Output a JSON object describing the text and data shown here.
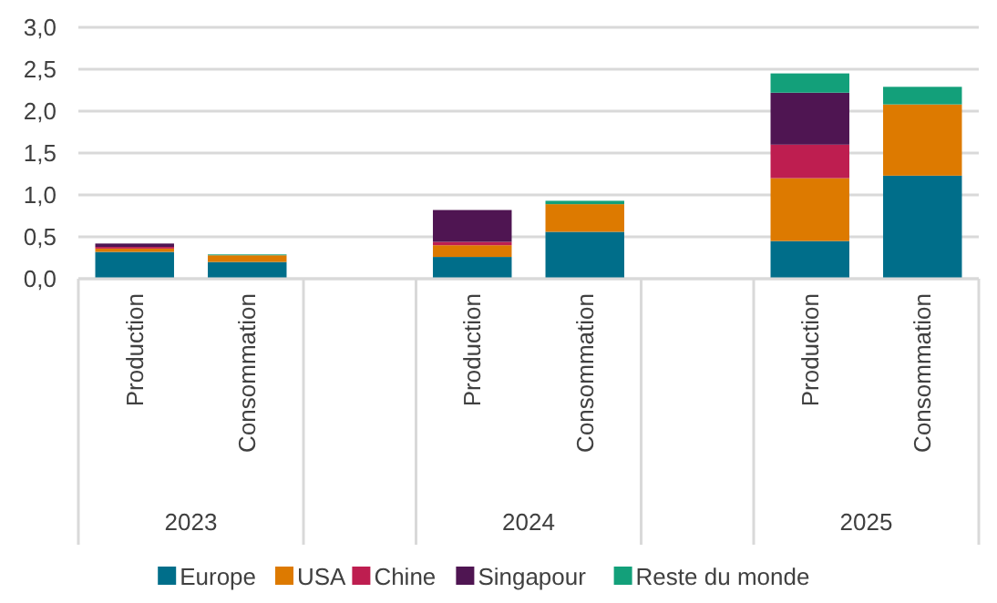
{
  "chart_data": {
    "type": "bar",
    "stacked": true,
    "categories": [
      "Production",
      "Consommation",
      null,
      "Production",
      "Consommation",
      null,
      "Production",
      "Consommation"
    ],
    "annotations": [
      "2023",
      "2024",
      "2025"
    ],
    "series": [
      {
        "name": "Europe",
        "color": "#006e8a",
        "values": [
          0.32,
          0.2,
          null,
          0.26,
          0.56,
          null,
          0.45,
          1.23
        ]
      },
      {
        "name": "USA",
        "color": "#dd7a00",
        "values": [
          0.04,
          0.08,
          null,
          0.14,
          0.33,
          null,
          0.75,
          0.85
        ]
      },
      {
        "name": "Chine",
        "color": "#be1e50",
        "values": [
          0.02,
          null,
          null,
          0.04,
          null,
          null,
          0.4,
          null
        ]
      },
      {
        "name": "Singapour",
        "color": "#4f1552",
        "values": [
          0.04,
          null,
          null,
          0.38,
          null,
          null,
          0.62,
          null
        ]
      },
      {
        "name": "Reste du monde",
        "color": "#13a07a",
        "values": [
          null,
          0.01,
          null,
          null,
          0.04,
          null,
          0.23,
          0.21
        ]
      }
    ],
    "ylim": [
      0,
      3
    ],
    "yticks": [
      {
        "value": 0,
        "label": "0,0"
      },
      {
        "value": 0.5,
        "label": "0,5"
      },
      {
        "value": 1,
        "label": "1,0"
      },
      {
        "value": 1.5,
        "label": "1,5"
      },
      {
        "value": 2,
        "label": "2,0"
      },
      {
        "value": 2.5,
        "label": "2,5"
      },
      {
        "value": 3,
        "label": "3,0"
      }
    ],
    "grid": "y",
    "legend": "bottom"
  }
}
